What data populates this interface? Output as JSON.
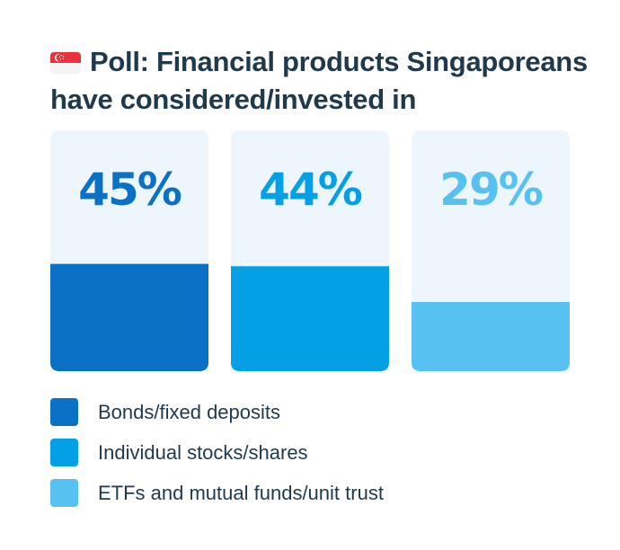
{
  "title": "Poll: Financial products Singaporeans have considered/invested in",
  "flag_icon": "singapore-flag-icon",
  "chart_data": {
    "type": "bar",
    "categories": [
      "Bonds/fixed deposits",
      "Individual stocks/shares",
      "ETFs and mutual funds/unit trust"
    ],
    "values": [
      45,
      44,
      29
    ],
    "value_labels": [
      "45%",
      "44%",
      "29%"
    ],
    "ylim": [
      0,
      100
    ],
    "colors": [
      "#0b71c4",
      "#04a0e6",
      "#57c2f2"
    ],
    "track_color": "#edf5fd",
    "legend_placement": "bottom-left"
  }
}
